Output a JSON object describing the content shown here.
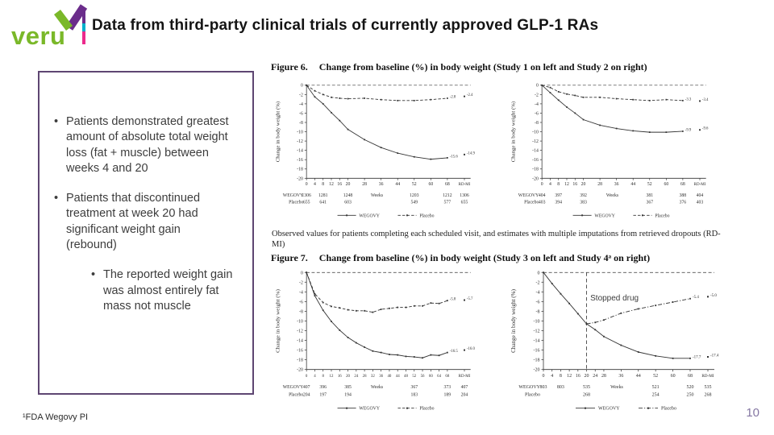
{
  "slide": {
    "logo_text": "veru",
    "title": "Data from third-party clinical trials of currently approved GLP-1 RAs",
    "footnote": "¹FDA Wegovy PI",
    "page_number": "10"
  },
  "colors": {
    "logo_green": "#7ab829",
    "logo_purple": "#6b2d8b",
    "bar_teal": "#00b0ca",
    "bar_pink": "#ec2a8c",
    "box_border_purple": "#5e4672",
    "page_number_purple": "#8577a3",
    "chart_ink": "#333333"
  },
  "bullets": {
    "b1": "Patients demonstrated greatest amount of absolute total weight loss (fat + muscle) between weeks 4 and 20",
    "b2": "Patients that discontinued treatment at week 20 had significant weight gain (rebound)",
    "b2_sub": "The reported weight gain was almost entirely fat mass not muscle"
  },
  "figure6": {
    "label": "Figure 6.",
    "title": "Change from baseline (%) in body weight (Study 1 on left and Study 2 on right)"
  },
  "figure7": {
    "label": "Figure 7.",
    "title": "Change from baseline (%) in body weight (Study 3 on left and Study 4ᵃ on right)"
  },
  "note": "Observed values for patients completing each scheduled visit, and estimates with multiple imputations from retrieved dropouts (RD-MI)",
  "chart_data": [
    {
      "type": "line",
      "name": "study1",
      "ylabel": "Change in body weight (%)",
      "xlabel": "Weeks",
      "ylim": [
        0,
        -20
      ],
      "xlim": [
        0,
        68
      ],
      "y_ticks": [
        0,
        -2,
        -4,
        -6,
        -8,
        -10,
        -12,
        -14,
        -16,
        -18,
        -20
      ],
      "x_ticks": [
        0,
        4,
        8,
        12,
        16,
        20,
        28,
        36,
        44,
        52,
        60,
        68
      ],
      "x_end_label": "RD-MI",
      "series": [
        {
          "name": "WEGOVY",
          "dash": "solid",
          "weeks": [
            0,
            4,
            8,
            12,
            16,
            20,
            28,
            36,
            44,
            52,
            60,
            68
          ],
          "values": [
            0,
            -2.5,
            -4.0,
            -5.9,
            -7.6,
            -9.5,
            -11.7,
            -13.4,
            -14.6,
            -15.4,
            -15.9,
            -15.6
          ],
          "end_label": "-15.6",
          "rdmi_value": -14.9,
          "rdmi_label": "-14.9"
        },
        {
          "name": "Placebo",
          "dash": "dashed",
          "weeks": [
            0,
            4,
            8,
            12,
            16,
            20,
            28,
            36,
            44,
            52,
            60,
            68
          ],
          "values": [
            0,
            -1.2,
            -2.0,
            -2.6,
            -2.8,
            -2.9,
            -2.8,
            -3.1,
            -3.3,
            -3.3,
            -3.1,
            -2.8
          ],
          "end_label": "-2.8",
          "rdmi_value": -2.4,
          "rdmi_label": "-2.4"
        }
      ],
      "table": {
        "row_labels": [
          "WEGOVY",
          "Placebo"
        ],
        "columns": [
          0,
          8,
          20,
          52,
          68,
          "RD-MI"
        ],
        "rows": [
          [
            1306,
            1281,
            1248,
            1203,
            1212,
            1306
          ],
          [
            655,
            641,
            603,
            549,
            577,
            655
          ]
        ]
      }
    },
    {
      "type": "line",
      "name": "study2",
      "ylabel": "Change in body weight (%)",
      "xlabel": "Weeks",
      "ylim": [
        0,
        -20
      ],
      "xlim": [
        0,
        68
      ],
      "y_ticks": [
        0,
        -2,
        -4,
        -6,
        -8,
        -10,
        -12,
        -14,
        -16,
        -18,
        -20
      ],
      "x_ticks": [
        0,
        4,
        8,
        12,
        16,
        20,
        28,
        36,
        44,
        52,
        60,
        68
      ],
      "x_end_label": "RD-MI",
      "series": [
        {
          "name": "WEGOVY",
          "dash": "solid",
          "weeks": [
            0,
            4,
            8,
            12,
            16,
            20,
            28,
            36,
            44,
            52,
            60,
            68
          ],
          "values": [
            0,
            -1.6,
            -3.2,
            -4.7,
            -6.0,
            -7.4,
            -8.6,
            -9.3,
            -9.8,
            -10.1,
            -10.1,
            -9.9
          ],
          "end_label": "-9.9",
          "rdmi_value": -9.6,
          "rdmi_label": "-9.6"
        },
        {
          "name": "Placebo",
          "dash": "dashed",
          "weeks": [
            0,
            4,
            8,
            12,
            16,
            20,
            28,
            36,
            44,
            52,
            60,
            68
          ],
          "values": [
            0,
            -0.5,
            -1.4,
            -1.9,
            -2.2,
            -2.6,
            -2.6,
            -2.9,
            -3.1,
            -3.3,
            -3.1,
            -3.3
          ],
          "end_label": "-3.3",
          "rdmi_value": -3.4,
          "rdmi_label": "-3.4"
        }
      ],
      "table": {
        "row_labels": [
          "WEGOVY",
          "Placebo"
        ],
        "columns": [
          0,
          8,
          20,
          52,
          68,
          "RD-MI"
        ],
        "rows": [
          [
            404,
            397,
            392,
            381,
            388,
            404
          ],
          [
            403,
            394,
            383,
            367,
            376,
            403
          ]
        ]
      }
    },
    {
      "type": "line",
      "name": "study3",
      "ylabel": "Change in body weight (%)",
      "xlabel": "Weeks",
      "ylim": [
        0,
        -20
      ],
      "xlim": [
        0,
        68
      ],
      "y_ticks": [
        0,
        -2,
        -4,
        -6,
        -8,
        -10,
        -12,
        -14,
        -16,
        -18,
        -20
      ],
      "x_ticks": [
        0,
        4,
        8,
        12,
        16,
        20,
        24,
        28,
        32,
        36,
        40,
        44,
        48,
        52,
        56,
        60,
        64,
        68
      ],
      "x_end_label": "RD-MI",
      "series": [
        {
          "name": "WEGOVY",
          "dash": "solid",
          "weeks": [
            0,
            4,
            8,
            12,
            16,
            20,
            24,
            28,
            32,
            36,
            40,
            44,
            48,
            52,
            56,
            60,
            64,
            68
          ],
          "values": [
            0,
            -4.8,
            -7.8,
            -10.1,
            -11.9,
            -13.4,
            -14.5,
            -15.4,
            -16.2,
            -16.5,
            -16.9,
            -17.0,
            -17.3,
            -17.4,
            -17.6,
            -17.0,
            -17.1,
            -16.5
          ],
          "end_label": "-16.5",
          "rdmi_value": -16.0,
          "rdmi_label": "-16.0"
        },
        {
          "name": "Placebo",
          "dash": "dashed",
          "weeks": [
            0,
            4,
            8,
            12,
            16,
            20,
            24,
            28,
            32,
            36,
            40,
            44,
            48,
            52,
            56,
            60,
            64,
            68
          ],
          "values": [
            0,
            -4.4,
            -6.2,
            -7.0,
            -7.3,
            -7.7,
            -7.9,
            -7.9,
            -8.2,
            -7.6,
            -7.4,
            -7.2,
            -7.2,
            -6.9,
            -6.9,
            -6.3,
            -6.4,
            -5.8
          ],
          "end_label": "-5.8",
          "rdmi_value": -5.7,
          "rdmi_label": "-5.7"
        }
      ],
      "table": {
        "row_labels": [
          "WEGOVY",
          "Placebo"
        ],
        "columns": [
          0,
          8,
          20,
          52,
          68,
          "RD-MI"
        ],
        "rows": [
          [
            407,
            396,
            385,
            367,
            373,
            407
          ],
          [
            204,
            197,
            194,
            183,
            189,
            204
          ]
        ]
      }
    },
    {
      "type": "line",
      "name": "study4",
      "ylabel": "Change in body weight (%)",
      "xlabel": "Weeks",
      "ylim": [
        0,
        -20
      ],
      "xlim": [
        0,
        68
      ],
      "y_ticks": [
        0,
        -2,
        -4,
        -6,
        -8,
        -10,
        -12,
        -14,
        -16,
        -18,
        -20
      ],
      "x_ticks": [
        0,
        4,
        8,
        12,
        16,
        20,
        24,
        28,
        36,
        44,
        52,
        60,
        68
      ],
      "x_end_label": "RD-MI",
      "vline_week": 20,
      "annotation": {
        "text": "Stopped drug",
        "week": 20.6,
        "value": -5.8
      },
      "series": [
        {
          "name": "WEGOVY",
          "dash": "solid",
          "weeks": [
            0,
            4,
            8,
            12,
            16,
            20,
            24,
            28,
            36,
            44,
            52,
            60,
            68
          ],
          "values": [
            0,
            -2.3,
            -4.4,
            -6.4,
            -8.5,
            -10.6,
            -11.8,
            -13.2,
            -15.0,
            -16.4,
            -17.2,
            -17.7,
            -17.7
          ],
          "end_label": "-17.7",
          "rdmi_value": -17.4,
          "rdmi_label": "-17.4"
        },
        {
          "name": "Placebo",
          "dash": "dashdot",
          "weeks": [
            20,
            24,
            28,
            36,
            44,
            52,
            60,
            68
          ],
          "values": [
            -10.6,
            -10.3,
            -9.8,
            -8.4,
            -7.5,
            -6.8,
            -6.1,
            -5.4
          ],
          "end_label": "-5.4",
          "rdmi_value": -5.0,
          "rdmi_label": "-5.0"
        }
      ],
      "table": {
        "row_labels": [
          "WEGOVY",
          "Placebo"
        ],
        "columns": [
          0,
          8,
          20,
          52,
          68,
          "RD-MI"
        ],
        "rows": [
          [
            803,
            803,
            535,
            521,
            520,
            535
          ],
          [
            null,
            null,
            268,
            254,
            250,
            268
          ]
        ]
      }
    }
  ]
}
